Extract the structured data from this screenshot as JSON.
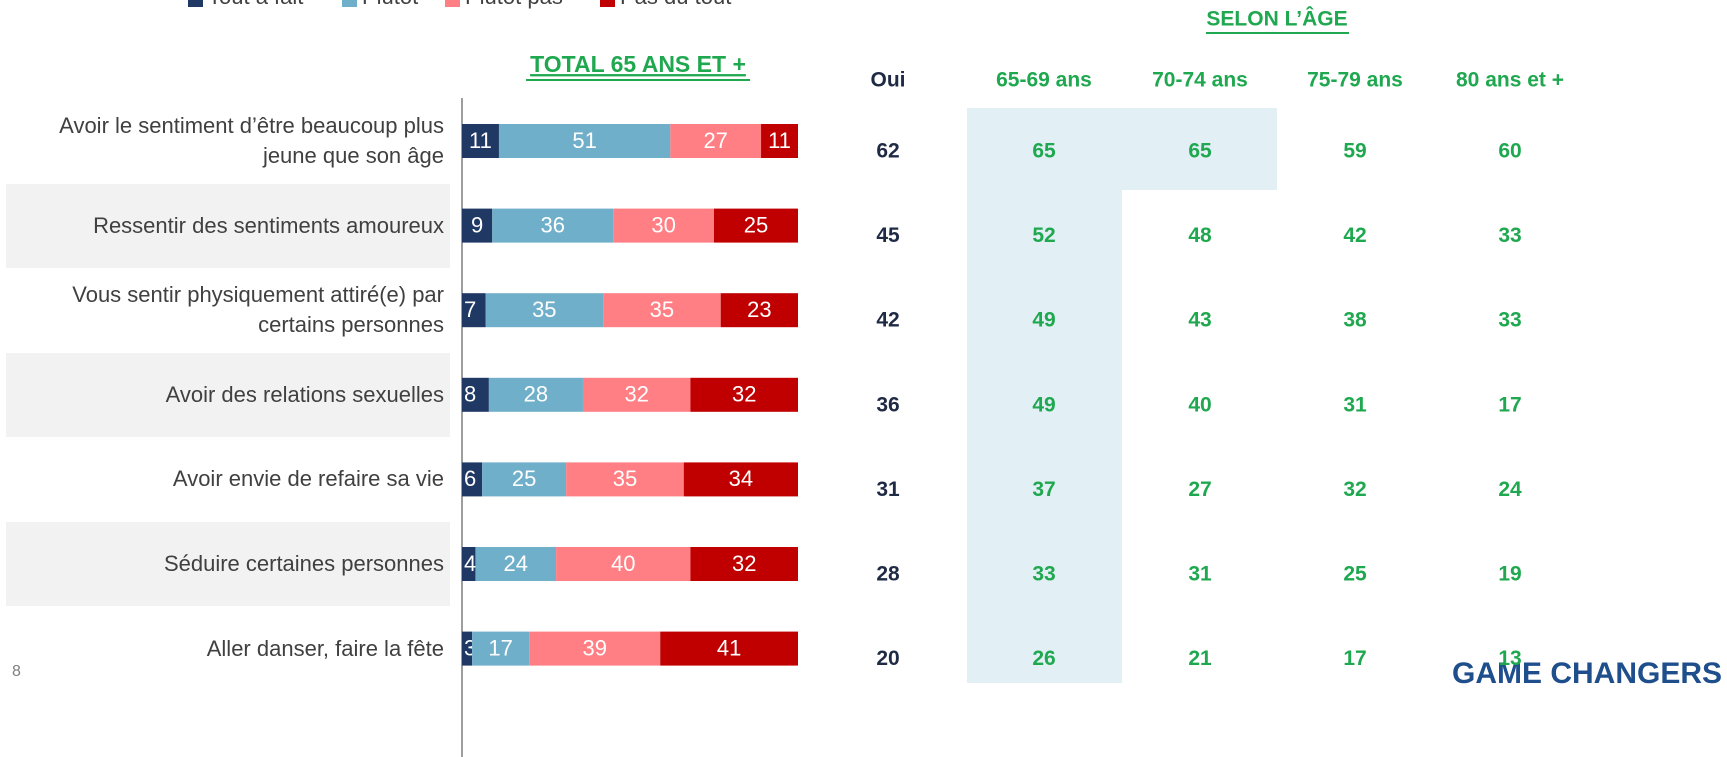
{
  "chart_data": {
    "type": "bar",
    "orientation": "horizontal",
    "stacked": true,
    "title": "TOTAL 65 ANS ET +",
    "categories": [
      "Avoir le sentiment d’être beaucoup plus jeune que son âge",
      "Ressentir des sentiments amoureux",
      "Vous sentir physiquement attiré(e) par certains personnes",
      "Avoir des relations sexuelles",
      "Avoir envie de refaire sa vie",
      "Séduire certaines personnes",
      "Aller danser, faire la fête"
    ],
    "series": [
      {
        "name": "Tout à fait",
        "color": "#1f3864",
        "values": [
          11,
          9,
          7,
          8,
          6,
          4,
          3
        ]
      },
      {
        "name": "Plutôt",
        "color": "#70afc9",
        "values": [
          51,
          36,
          35,
          28,
          25,
          24,
          17
        ]
      },
      {
        "name": "Plutôt pas",
        "color": "#ff7f84",
        "values": [
          27,
          30,
          35,
          32,
          35,
          40,
          39
        ]
      },
      {
        "name": "Pas du tout",
        "color": "#c00000",
        "values": [
          11,
          25,
          23,
          32,
          34,
          32,
          41
        ]
      }
    ],
    "xlim": [
      0,
      100
    ]
  },
  "table": {
    "group_header": "SELON L’ÂGE",
    "headers": [
      "Oui",
      "65-69 ans",
      "70-74 ans",
      "75-79 ans",
      "80 ans et +"
    ],
    "rows": [
      [
        62,
        65,
        65,
        59,
        60
      ],
      [
        45,
        52,
        48,
        42,
        33
      ],
      [
        42,
        49,
        43,
        38,
        33
      ],
      [
        36,
        49,
        40,
        31,
        17
      ],
      [
        31,
        37,
        27,
        32,
        24
      ],
      [
        28,
        33,
        31,
        25,
        19
      ],
      [
        20,
        26,
        21,
        17,
        13
      ]
    ]
  },
  "footer": {
    "page": "8",
    "logo": "GAME CHANGERS"
  }
}
